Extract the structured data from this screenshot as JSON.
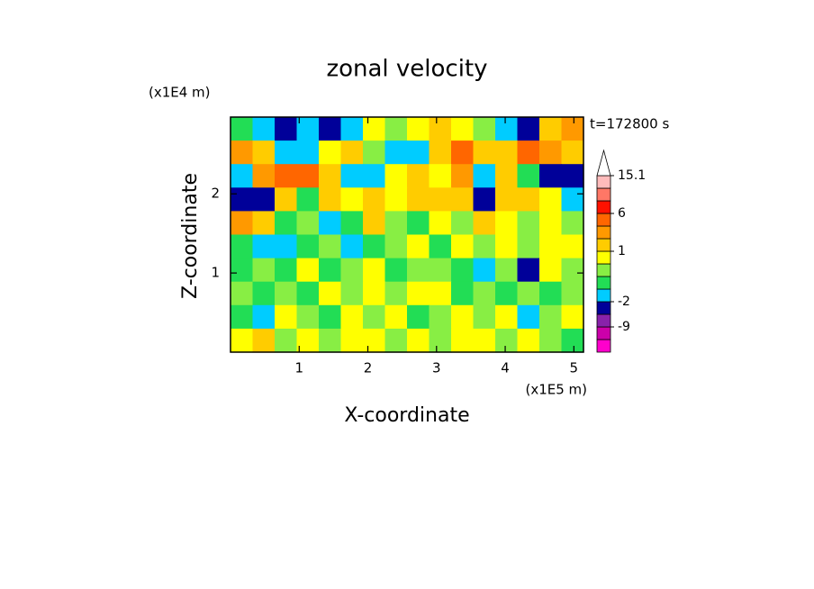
{
  "chart_data": {
    "type": "contour",
    "title": "zonal velocity",
    "time_label": "t=172800 s",
    "x_label": "X-coordinate",
    "y_label": "Z-coordinate",
    "x_multiplier": "(x1E5 m)",
    "y_multiplier": "(x1E4 m)",
    "xlim": [
      0,
      5.14
    ],
    "ylim": [
      0,
      2.97
    ],
    "xticks": [
      1,
      2,
      3,
      4,
      5
    ],
    "yticks": [
      1,
      2
    ],
    "z": [
      [
        0,
        -1.5,
        -5,
        -1,
        -5,
        -1.5,
        0.8,
        0.3,
        0.8,
        1.5,
        0.8,
        0.3,
        -1.5,
        -3,
        1.5,
        3
      ],
      [
        3,
        2,
        -1.5,
        -1.5,
        0.8,
        2,
        0.3,
        -1.5,
        -1.5,
        2,
        4,
        2,
        1.5,
        4,
        3,
        1.5
      ],
      [
        -1.5,
        3,
        4,
        4,
        2,
        -1.5,
        -1.5,
        0.8,
        1.5,
        0.8,
        3,
        -1.5,
        1.5,
        -0.5,
        -5,
        -3
      ],
      [
        -5,
        -5,
        2,
        -0.5,
        1.5,
        0.8,
        1.5,
        0.8,
        1.5,
        1.5,
        1.5,
        -5,
        2,
        1.5,
        0.8,
        -1.5
      ],
      [
        3,
        2,
        -0.5,
        0.3,
        -1.5,
        -0.5,
        1.5,
        0.3,
        -0.5,
        0.8,
        0.3,
        1.5,
        0.8,
        0.3,
        0.8,
        0.3
      ],
      [
        -0.5,
        -1.5,
        -1.5,
        -0.5,
        0.3,
        -1.5,
        -0.5,
        0.3,
        0.8,
        -0.5,
        0.8,
        0.3,
        0.8,
        0.3,
        0.8,
        0.8
      ],
      [
        -0.5,
        0.3,
        -0.5,
        0.8,
        -0.5,
        0.3,
        0.8,
        -0.5,
        0.3,
        0.3,
        -0.5,
        -1.5,
        0.3,
        -3,
        0.8,
        0.3
      ],
      [
        0.3,
        -0.5,
        0.3,
        -0.5,
        0.8,
        0.3,
        0.8,
        0.3,
        0.8,
        0.8,
        -0.5,
        0.3,
        -0.5,
        0.3,
        -0.5,
        0.3
      ],
      [
        -0.5,
        -1.5,
        0.8,
        0.3,
        -0.5,
        0.8,
        0.3,
        0.8,
        -0.5,
        0.3,
        0.8,
        0.3,
        0.8,
        -1.5,
        0.3,
        0.8
      ],
      [
        0.8,
        1.5,
        0.3,
        0.8,
        0.3,
        0.8,
        0.8,
        0.3,
        0.8,
        0.3,
        0.8,
        0.8,
        0.3,
        0.8,
        0.3,
        -0.5
      ]
    ],
    "colorbar": {
      "levels": [
        -15,
        -12,
        -9,
        -6,
        -2,
        -1,
        0,
        0.5,
        1,
        2,
        3,
        6,
        9,
        12,
        15.1
      ],
      "colors": [
        "#ff00cc",
        "#cc00aa",
        "#8822aa",
        "#000099",
        "#00ccff",
        "#22dd55",
        "#88ee44",
        "#ffff00",
        "#ffcc00",
        "#ff9900",
        "#ff6600",
        "#ff1100",
        "#ff7766",
        "#ffbbbb"
      ],
      "over_color": "#ffffff",
      "ticks": [
        15.1,
        6,
        1,
        -2,
        -9
      ]
    }
  }
}
